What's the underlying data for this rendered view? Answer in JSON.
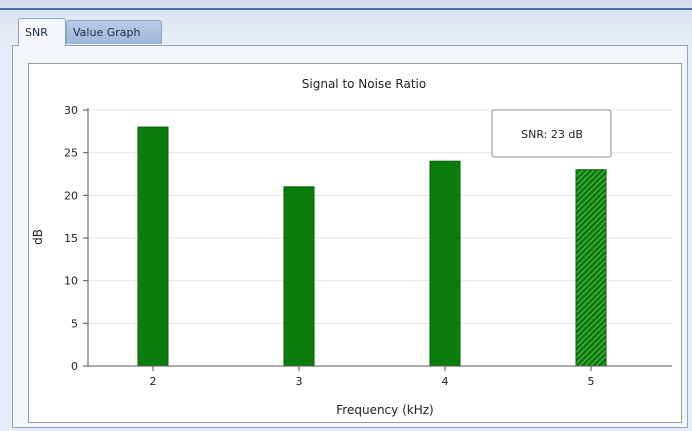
{
  "tabs": [
    {
      "label": "SNR",
      "active": true
    },
    {
      "label": "Value Graph",
      "active": false
    }
  ],
  "tooltip": {
    "text": "SNR: 23 dB"
  },
  "colors": {
    "bar": "#0a7d0a",
    "bar_edge": "#056005",
    "grid": "#e6e6e6"
  },
  "chart_data": {
    "type": "bar",
    "title": "Signal to Noise Ratio",
    "xlabel": "Frequency (kHz)",
    "ylabel": "dB",
    "categories": [
      "2",
      "3",
      "4",
      "5"
    ],
    "values": [
      28,
      21,
      24,
      23
    ],
    "ylim": [
      0,
      30
    ],
    "yticks": [
      0,
      5,
      10,
      15,
      20,
      25,
      30
    ],
    "grid": true,
    "highlighted_category": "5"
  }
}
